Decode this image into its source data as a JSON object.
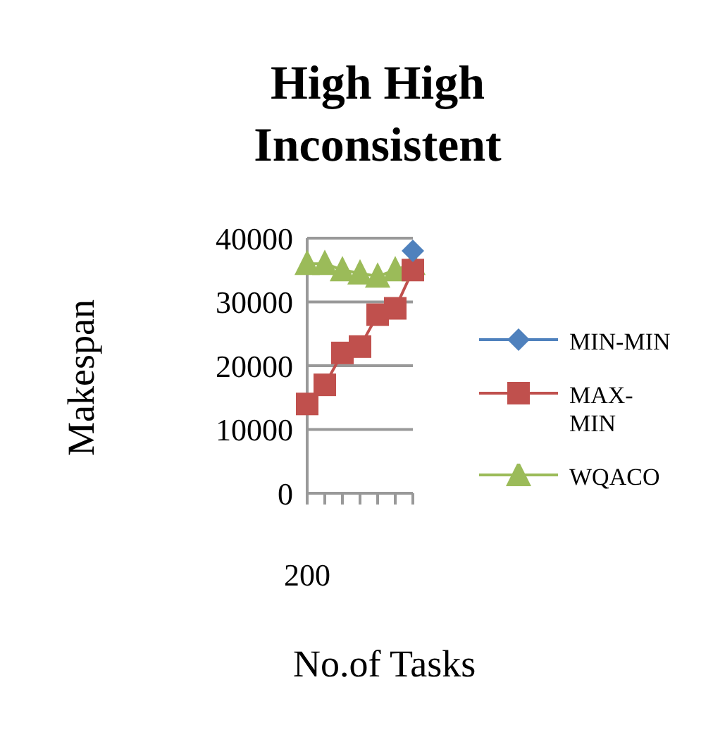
{
  "chart_data": {
    "type": "line",
    "title": "High High Inconsistent",
    "xlabel": "No.of Tasks",
    "ylabel": "Makespan",
    "categories": [
      "200",
      null,
      null,
      null,
      null,
      null,
      null
    ],
    "series": [
      {
        "name": "MIN-MIN",
        "color": "#4f81bd",
        "marker": "diamond",
        "values": [
          null,
          null,
          null,
          null,
          null,
          null,
          38000
        ]
      },
      {
        "name": "MAX-MIN",
        "color": "#c0504d",
        "marker": "square",
        "values": [
          14000,
          17000,
          22000,
          23000,
          28000,
          29000,
          35000
        ]
      },
      {
        "name": "WQACO",
        "color": "#9bbb59",
        "marker": "triangle",
        "values": [
          36000,
          36000,
          35000,
          34500,
          34000,
          35000,
          36000
        ]
      }
    ],
    "ylim": [
      0,
      40000
    ],
    "yticks": [
      0,
      10000,
      20000,
      30000,
      40000
    ],
    "grid": "y",
    "legend": "right"
  }
}
